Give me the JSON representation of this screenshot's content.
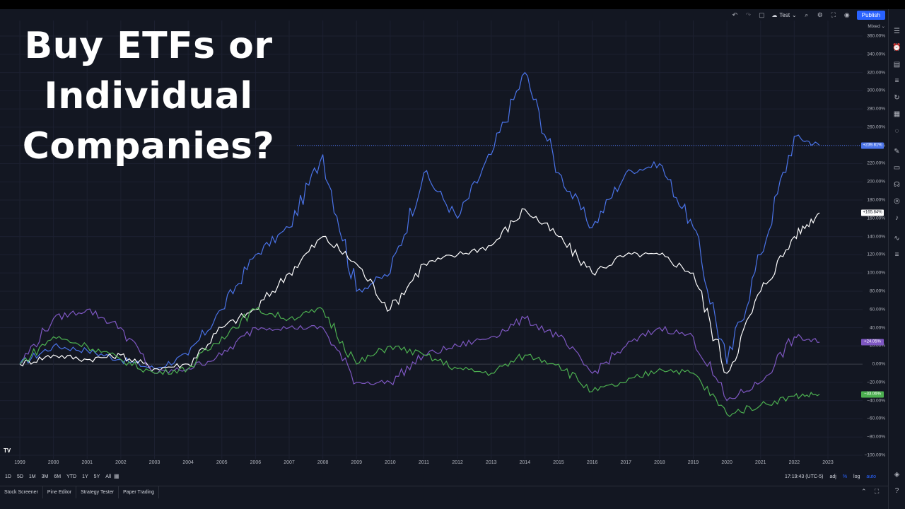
{
  "title": {
    "line1": "Buy ETFs or",
    "line2": "Individual",
    "line3": "Companies?"
  },
  "toolbar": {
    "undo_icon": "undo-icon",
    "redo_icon": "redo-icon",
    "layout_name": "Test",
    "publish_label": "Publish"
  },
  "chart_data": {
    "type": "line",
    "scale_mode": "Mixed",
    "x": [
      1999,
      2000,
      2001,
      2002,
      2003,
      2004,
      2005,
      2006,
      2007,
      2008,
      2009,
      2010,
      2011,
      2012,
      2013,
      2014,
      2015,
      2016,
      2017,
      2018,
      2019,
      2020,
      2021,
      2022,
      2022.75
    ],
    "x_ticks": [
      "1999",
      "2000",
      "2001",
      "2002",
      "2003",
      "2004",
      "2005",
      "2006",
      "2007",
      "2008",
      "2009",
      "2010",
      "2011",
      "2012",
      "2013",
      "2014",
      "2015",
      "2016",
      "2017",
      "2018",
      "2019",
      "2020",
      "2021",
      "2022",
      "2023"
    ],
    "y_ticks": [
      "360.00%",
      "340.00%",
      "320.00%",
      "300.00%",
      "280.00%",
      "260.00%",
      "240.00%",
      "220.00%",
      "200.00%",
      "180.00%",
      "160.00%",
      "140.00%",
      "120.00%",
      "100.00%",
      "80.00%",
      "60.00%",
      "40.00%",
      "20.00%",
      "0.00%",
      "−20.00%",
      "−40.00%",
      "−60.00%",
      "−80.00%",
      "−100.00%"
    ],
    "ylim": [
      -100,
      360
    ],
    "series": [
      {
        "color": "#4a73e8",
        "last_label": "+239.81%",
        "values": [
          0,
          20,
          15,
          5,
          -5,
          10,
          60,
          120,
          150,
          230,
          80,
          100,
          210,
          160,
          230,
          320,
          210,
          150,
          210,
          220,
          150,
          0,
          120,
          250,
          240
        ]
      },
      {
        "color": "#ffffff",
        "last_label": "+165.84%",
        "values": [
          0,
          10,
          5,
          10,
          -5,
          0,
          40,
          60,
          100,
          140,
          110,
          60,
          110,
          120,
          130,
          170,
          140,
          100,
          120,
          120,
          100,
          -10,
          80,
          140,
          166
        ]
      },
      {
        "color": "#7e57c2",
        "last_label": "+24.05%",
        "values": [
          0,
          50,
          60,
          40,
          -10,
          -5,
          10,
          40,
          40,
          40,
          -20,
          -20,
          10,
          20,
          30,
          50,
          30,
          -10,
          20,
          40,
          30,
          -40,
          -20,
          30,
          24
        ]
      },
      {
        "color": "#4caf50",
        "last_label": "−33.06%",
        "values": [
          0,
          30,
          20,
          5,
          -10,
          -5,
          30,
          60,
          50,
          60,
          0,
          20,
          10,
          -5,
          -10,
          10,
          0,
          -30,
          -20,
          -5,
          -10,
          -55,
          -45,
          -35,
          -33
        ]
      }
    ],
    "grid": true
  },
  "ranges": [
    "1D",
    "5D",
    "1M",
    "3M",
    "6M",
    "YTD",
    "1Y",
    "5Y",
    "All"
  ],
  "clock": "17:19:43 (UTC-5)",
  "axis_controls": {
    "adj": "adj",
    "percent": "%",
    "log": "log",
    "auto": "auto"
  },
  "bottom_tabs": [
    "Stock Screener",
    "Pine Editor",
    "Strategy Tester",
    "Paper Trading"
  ]
}
